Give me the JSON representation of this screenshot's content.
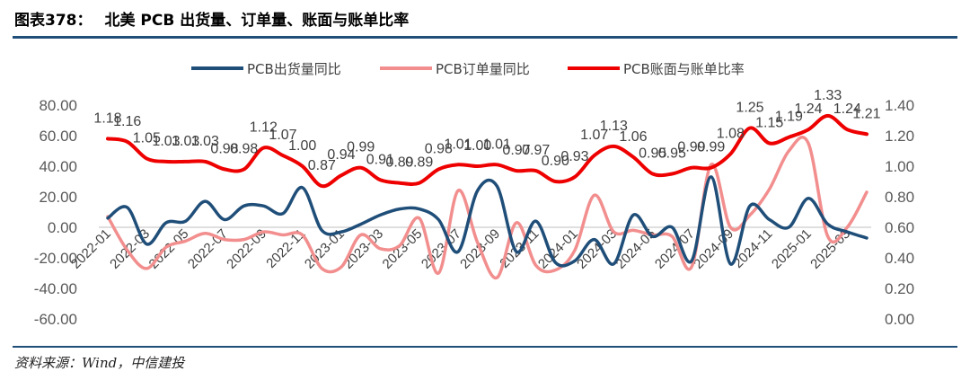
{
  "header": {
    "figure_no": "图表378：",
    "title": "北美 PCB 出货量、订单量、账面与账单比率"
  },
  "source": "资料来源：Wind，中信建投",
  "chart_data": {
    "type": "line",
    "title": "北美 PCB 出货量、订单量、账面与账单比率",
    "categories": [
      "2022-01",
      "2022-02",
      "2022-03",
      "2022-04",
      "2022-05",
      "2022-06",
      "2022-07",
      "2022-08",
      "2022-09",
      "2022-10",
      "2022-11",
      "2022-12",
      "2023-01",
      "2023-02",
      "2023-03",
      "2023-04",
      "2023-05",
      "2023-06",
      "2023-07",
      "2023-08",
      "2023-09",
      "2023-10",
      "2023-11",
      "2023-12",
      "2024-01",
      "2024-02",
      "2024-03",
      "2024-04",
      "2024-05",
      "2024-06",
      "2024-07",
      "2024-08",
      "2024-09",
      "2024-10",
      "2024-11",
      "2024-12",
      "2025-01",
      "2025-02",
      "2025-03",
      "2025-04"
    ],
    "x_tick_labels": [
      "2022-01",
      "2022-03",
      "2022-05",
      "2022-07",
      "2022-09",
      "2022-11",
      "2023-01",
      "2023-03",
      "2023-05",
      "2023-07",
      "2023-09",
      "2023-11",
      "2024-01",
      "2024-03",
      "2024-05",
      "2024-07",
      "2024-09",
      "2024-11",
      "2025-01",
      "2025-03"
    ],
    "y_left": {
      "min": -60,
      "max": 80,
      "step": 20,
      "tick_labels": [
        "80.00",
        "60.00",
        "40.00",
        "20.00",
        "0.00",
        "-20.00",
        "-40.00",
        "-60.00"
      ]
    },
    "y_right": {
      "min": 0,
      "max": 1.4,
      "step": 0.2,
      "tick_labels": [
        "1.40",
        "1.20",
        "1.00",
        "0.80",
        "0.60",
        "0.40",
        "0.20",
        "0.00"
      ]
    },
    "legend_position": "top",
    "series": [
      {
        "name": "PCB出货量同比",
        "axis": "left",
        "color": "#1f4e79",
        "values": [
          6,
          13,
          -11,
          3,
          4,
          17,
          5,
          14,
          14,
          9,
          26,
          -2,
          -3,
          2,
          8,
          12,
          12,
          5,
          -16,
          24,
          27,
          -16,
          4,
          -23,
          -22,
          -8,
          -24,
          8,
          -6,
          0,
          -22,
          33,
          -24,
          14,
          5,
          0,
          19,
          2,
          -3,
          -7
        ]
      },
      {
        "name": "PCB订单量同比",
        "axis": "left",
        "color": "#f28e8e",
        "values": [
          7,
          -15,
          -27,
          -13,
          -9,
          -4,
          -8,
          -8,
          -3,
          -5,
          -5,
          -27,
          -26,
          -5,
          -14,
          -12,
          6,
          -30,
          24,
          -10,
          -33,
          3,
          -25,
          -28,
          -15,
          21,
          -3,
          -2,
          -5,
          -6,
          -26,
          41,
          0,
          8,
          25,
          50,
          55,
          -6,
          0,
          23
        ]
      },
      {
        "name": "PCB账面与账单比率",
        "axis": "right",
        "color": "#ee0000",
        "values": [
          1.18,
          1.16,
          1.05,
          1.03,
          1.03,
          1.03,
          0.98,
          0.98,
          1.12,
          1.07,
          1.0,
          0.87,
          0.94,
          0.99,
          0.91,
          0.89,
          0.89,
          0.98,
          1.01,
          1.0,
          1.01,
          0.97,
          0.97,
          0.9,
          0.93,
          1.07,
          1.13,
          1.06,
          0.95,
          0.95,
          0.99,
          0.99,
          1.08,
          1.25,
          1.15,
          1.19,
          1.24,
          1.33,
          1.24,
          1.21
        ]
      }
    ],
    "data_labels": [
      "1.18",
      "1.16",
      "1.05",
      "1.03",
      "1.03",
      "1.03",
      "0.98",
      "0.98",
      "1.12",
      "1.07",
      "1.00",
      "0.87",
      "0.94",
      "0.99",
      "0.91",
      "0.89",
      "0.89",
      "0.98",
      "1.01",
      "1.00",
      "1.01",
      "0.97",
      "0.97",
      "0.90",
      "0.93",
      "1.07",
      "1.13",
      "1.06",
      "0.95",
      "0.95",
      "0.99",
      "0.99",
      "1.08",
      "1.25",
      "1.15",
      "1.19",
      "1.24",
      "1.33",
      "1.24",
      "1.21"
    ]
  }
}
